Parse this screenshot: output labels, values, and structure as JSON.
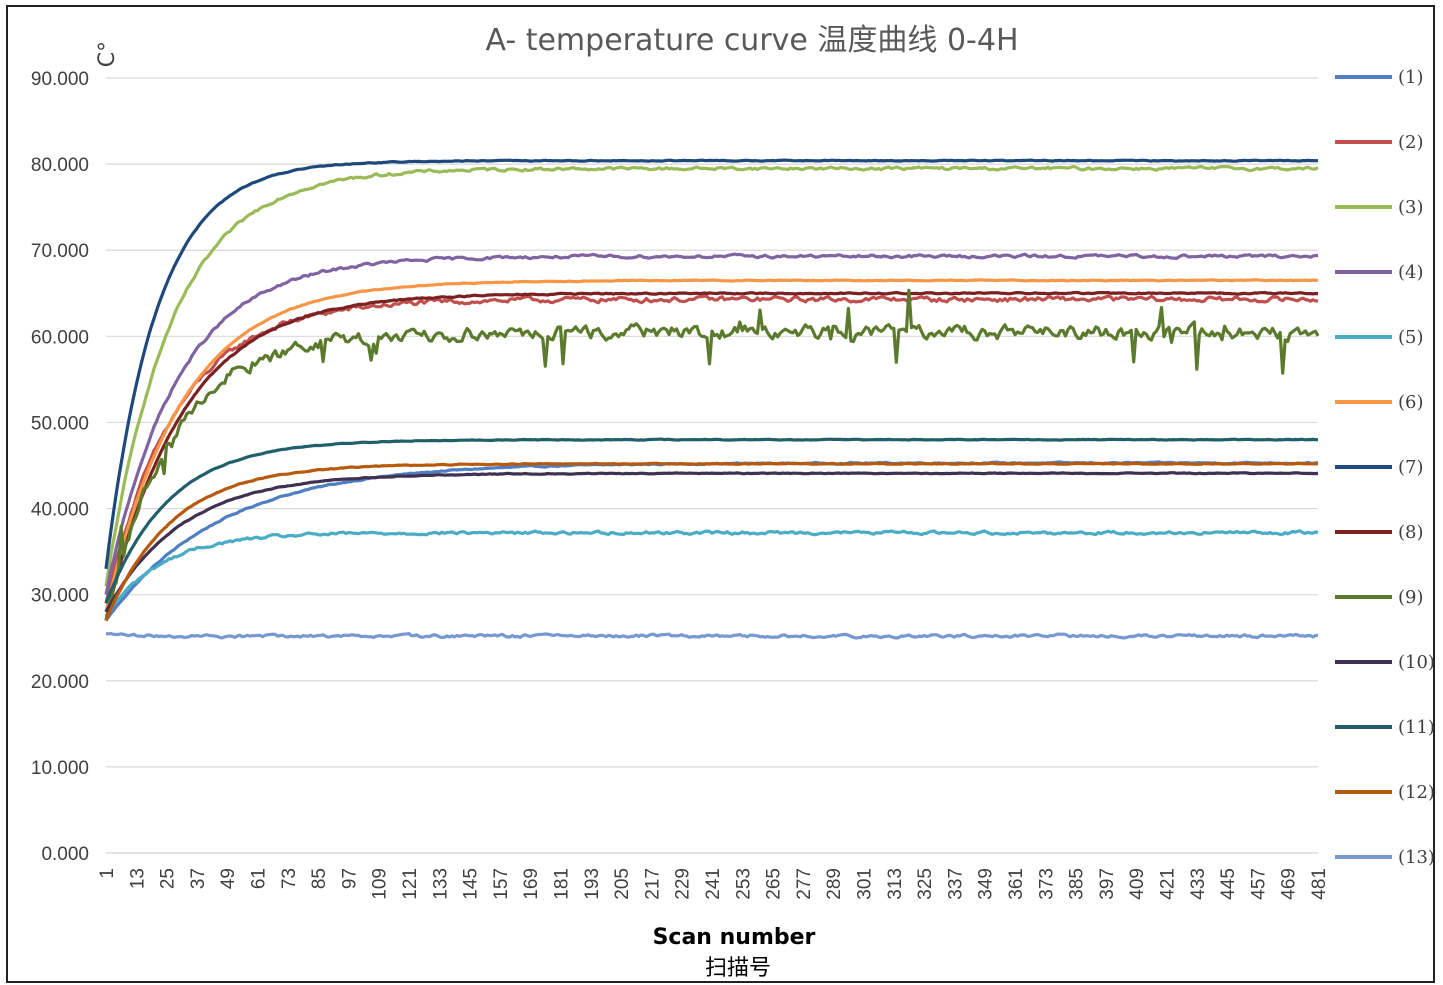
{
  "chart_data": {
    "type": "line",
    "title": "A- temperature curve    温度曲线  0-4H",
    "y_unit": "C°",
    "xlabel": "Scan number",
    "xlabel_cn": "扫描号",
    "ylim": [
      0,
      90
    ],
    "y_ticks": [
      "90.000",
      "80.000",
      "70.000",
      "60.000",
      "50.000",
      "40.000",
      "30.000",
      "20.000",
      "10.000",
      "0.000"
    ],
    "x_range": [
      1,
      481
    ],
    "x_ticks": [
      "1",
      "13",
      "25",
      "37",
      "49",
      "61",
      "73",
      "85",
      "97",
      "109",
      "121",
      "133",
      "145",
      "157",
      "169",
      "181",
      "193",
      "205",
      "217",
      "229",
      "241",
      "253",
      "265",
      "277",
      "289",
      "301",
      "313",
      "325",
      "337",
      "349",
      "361",
      "373",
      "385",
      "397",
      "409",
      "421",
      "433",
      "445",
      "457",
      "469",
      "481"
    ],
    "grid": true,
    "legend_position": "right",
    "series": [
      {
        "name": "(1)",
        "color": "#4E7FC3",
        "start": 27.0,
        "plateau": 45.3,
        "tau": 45,
        "noise": 0.15
      },
      {
        "name": "(2)",
        "color": "#C0504D",
        "start": 29.0,
        "plateau": 64.3,
        "tau": 28,
        "noise": 0.6
      },
      {
        "name": "(3)",
        "color": "#9BBB59",
        "start": 31.0,
        "plateau": 79.5,
        "tau": 26,
        "noise": 0.35
      },
      {
        "name": "(4)",
        "color": "#8064A2",
        "start": 30.0,
        "plateau": 69.3,
        "tau": 28,
        "noise": 0.35
      },
      {
        "name": "(5)",
        "color": "#4BACC6",
        "start": 27.5,
        "plateau": 37.2,
        "tau": 22,
        "noise": 0.35
      },
      {
        "name": "(6)",
        "color": "#F79646",
        "start": 28.0,
        "plateau": 66.5,
        "tau": 30,
        "noise": 0.1
      },
      {
        "name": "(7)",
        "color": "#1F497D",
        "start": 33.0,
        "plateau": 80.4,
        "tau": 20,
        "noise": 0.1
      },
      {
        "name": "(8)",
        "color": "#7B2121",
        "start": 27.0,
        "plateau": 65.0,
        "tau": 30,
        "noise": 0.15
      },
      {
        "name": "(9)",
        "color": "#5B7A2C",
        "start": 27.0,
        "plateau": 60.5,
        "tau": 26,
        "noise": 1.6
      },
      {
        "name": "(10)",
        "color": "#403152",
        "start": 28.0,
        "plateau": 44.1,
        "tau": 30,
        "noise": 0.1
      },
      {
        "name": "(11)",
        "color": "#215F6A",
        "start": 29.0,
        "plateau": 48.0,
        "tau": 25,
        "noise": 0.08
      },
      {
        "name": "(12)",
        "color": "#B85A0D",
        "start": 27.0,
        "plateau": 45.2,
        "tau": 26,
        "noise": 0.1
      },
      {
        "name": "(13)",
        "color": "#7798D1",
        "start": 25.5,
        "plateau": 25.2,
        "tau": 5,
        "noise": 0.35
      }
    ]
  }
}
